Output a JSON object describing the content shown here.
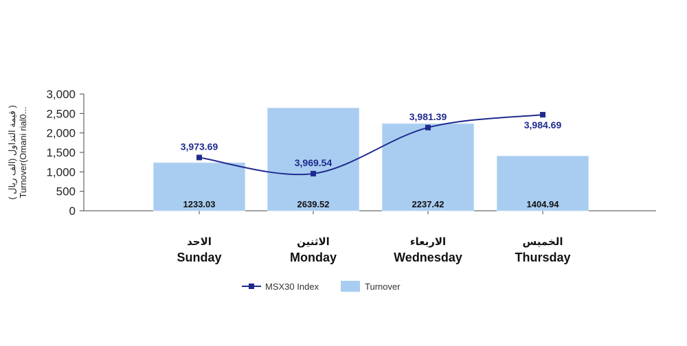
{
  "chart_data": {
    "type": "bar",
    "categories": [
      {
        "ar": "الاحد",
        "en": "Sunday"
      },
      {
        "ar": "الاثنين",
        "en": "Monday"
      },
      {
        "ar": "الاربعاء",
        "en": "Wednesday"
      },
      {
        "ar": "الخميس",
        "en": "Thursday"
      }
    ],
    "ylabel_line1": "قيمة التداول (الف ريال )",
    "ylabel_line2": "Turnover(Omani rial0...",
    "ylim": [
      0,
      3000
    ],
    "yticks": [
      "0",
      "500",
      "1,000",
      "1,500",
      "2,000",
      "2,500",
      "3,000"
    ],
    "ytick_values": [
      0,
      500,
      1000,
      1500,
      2000,
      2500,
      3000
    ],
    "grid": false,
    "legend_position": "bottom-center",
    "series": [
      {
        "name": "Turnover",
        "type": "bar",
        "color": "#a9cdf0",
        "values": [
          1233.03,
          2639.52,
          2237.42,
          1404.94
        ],
        "labels": [
          "1233.03",
          "2639.52",
          "2237.42",
          "1404.94"
        ]
      },
      {
        "name": "MSX30 Index",
        "type": "line",
        "color": "#1f2a8f",
        "values": [
          3973.69,
          3969.54,
          3981.39,
          3984.69
        ],
        "labels": [
          "3,973.69",
          "3,969.54",
          "3,981.39",
          "3,984.69"
        ],
        "secondary_axis_range": [
          3960,
          3990
        ]
      }
    ]
  }
}
